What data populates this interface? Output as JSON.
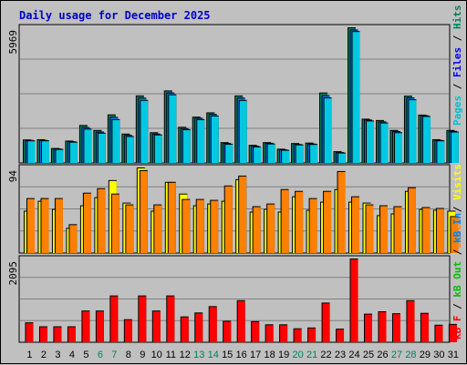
{
  "title": "Daily usage for December 2025",
  "colors": {
    "background": "#c0c0c0",
    "grid": "#808080",
    "hits": "#00805c",
    "files": "#0080ff",
    "pages": "#00c8e0",
    "visits": "#ffff00",
    "sites": "#ff8000",
    "kb_in": "#0080ff",
    "kb_out": "#00c000",
    "kbytes": "#ff0000",
    "weekend_label": "#007f5f",
    "weekday_label": "#000000"
  },
  "legends": {
    "panel1": [
      {
        "label": "Pages",
        "color": "#00c0d0"
      },
      {
        "label": "Files",
        "color": "#0000ff"
      },
      {
        "label": "Hits",
        "color": "#00805c"
      }
    ],
    "panel2": [
      {
        "label": "Sites",
        "color": "#ff8000"
      },
      {
        "label": "Visits",
        "color": "#ffff00"
      }
    ],
    "panel3": [
      {
        "label": "kB F",
        "color": "#ff0000"
      },
      {
        "label": "kB Out",
        "color": "#00c000"
      },
      {
        "label": "kB In",
        "color": "#0080ff"
      }
    ]
  },
  "chart_data": [
    {
      "type": "bar",
      "panel": "hits-files-pages",
      "max_label": "5969",
      "ylim": [
        0,
        5969
      ],
      "categories": [
        "1",
        "2",
        "3",
        "4",
        "5",
        "6",
        "7",
        "8",
        "9",
        "10",
        "11",
        "12",
        "13",
        "14",
        "15",
        "16",
        "17",
        "18",
        "19",
        "20",
        "21",
        "22",
        "23",
        "24",
        "25",
        "26",
        "27",
        "28",
        "29",
        "30",
        "31"
      ],
      "series": [
        {
          "name": "Hits",
          "values": [
            1000,
            1010,
            620,
            950,
            1640,
            1420,
            2110,
            1260,
            2950,
            1320,
            3170,
            1560,
            2010,
            2200,
            880,
            2950,
            760,
            880,
            590,
            840,
            860,
            3080,
            480,
            5969,
            1920,
            1860,
            1420,
            2940,
            2100,
            1010,
            1420
          ]
        },
        {
          "name": "Files",
          "values": [
            980,
            980,
            600,
            920,
            1550,
            1350,
            2000,
            1200,
            2850,
            1260,
            3080,
            1500,
            1960,
            2130,
            840,
            2850,
            720,
            850,
            560,
            800,
            820,
            2960,
            440,
            5870,
            1880,
            1800,
            1370,
            2860,
            2070,
            980,
            1380
          ]
        },
        {
          "name": "Pages",
          "values": [
            960,
            960,
            580,
            900,
            1480,
            1300,
            1900,
            1150,
            2750,
            1220,
            3000,
            1450,
            1900,
            2060,
            810,
            2750,
            690,
            820,
            540,
            780,
            800,
            2860,
            420,
            5800,
            1840,
            1750,
            1320,
            2780,
            2040,
            960,
            1350
          ]
        }
      ]
    },
    {
      "type": "bar",
      "panel": "visits-sites",
      "max_label": "94",
      "ylim": [
        0,
        94
      ],
      "categories": [
        "1",
        "2",
        "3",
        "4",
        "5",
        "6",
        "7",
        "8",
        "9",
        "10",
        "11",
        "12",
        "13",
        "14",
        "15",
        "16",
        "17",
        "18",
        "19",
        "20",
        "21",
        "22",
        "23",
        "24",
        "25",
        "26",
        "27",
        "28",
        "29",
        "30",
        "31"
      ],
      "series": [
        {
          "name": "Visits",
          "values": [
            46,
            57,
            48,
            27,
            52,
            61,
            80,
            55,
            94,
            46,
            78,
            65,
            52,
            54,
            57,
            81,
            45,
            48,
            45,
            62,
            47,
            56,
            70,
            56,
            55,
            41,
            43,
            68,
            48,
            47,
            46
          ]
        },
        {
          "name": "Sites",
          "values": [
            60,
            60,
            60,
            31,
            66,
            71,
            65,
            53,
            91,
            53,
            78,
            59,
            59,
            58,
            74,
            85,
            51,
            54,
            70,
            68,
            60,
            68,
            90,
            62,
            53,
            52,
            51,
            72,
            50,
            49,
            40
          ]
        }
      ]
    },
    {
      "type": "bar",
      "panel": "kbytes",
      "max_label": "2095",
      "ylim": [
        0,
        2095
      ],
      "categories": [
        "1",
        "2",
        "3",
        "4",
        "5",
        "6",
        "7",
        "8",
        "9",
        "10",
        "11",
        "12",
        "13",
        "14",
        "15",
        "16",
        "17",
        "18",
        "19",
        "20",
        "21",
        "22",
        "23",
        "24",
        "25",
        "26",
        "27",
        "28",
        "29",
        "30",
        "31"
      ],
      "series": [
        {
          "name": "kB F",
          "values": [
            480,
            380,
            380,
            380,
            780,
            780,
            1160,
            560,
            1160,
            780,
            1160,
            630,
            730,
            890,
            520,
            1040,
            510,
            430,
            430,
            330,
            350,
            980,
            320,
            2095,
            700,
            760,
            710,
            1040,
            720,
            420,
            440
          ]
        }
      ]
    }
  ]
}
